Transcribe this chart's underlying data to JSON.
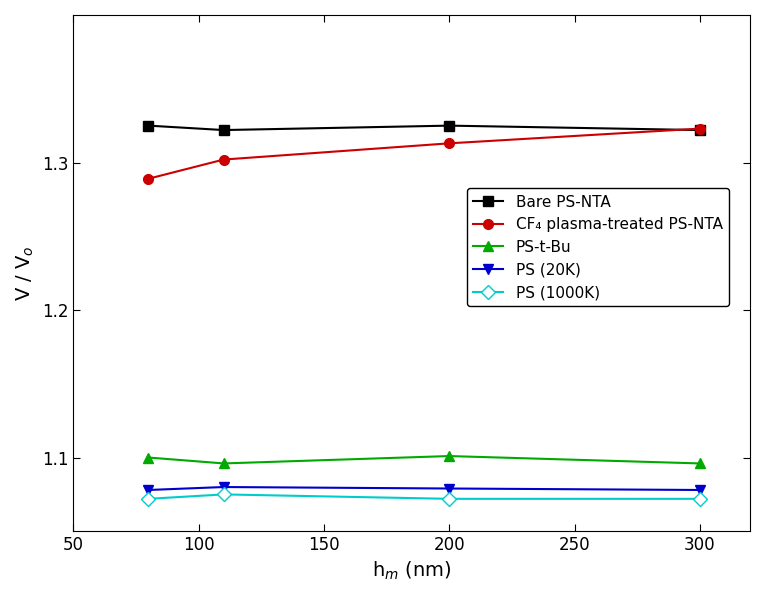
{
  "x": [
    80,
    110,
    200,
    300
  ],
  "bare_ps_nta": [
    1.325,
    1.322,
    1.325,
    1.322
  ],
  "cf4_ps_nta": [
    1.289,
    1.302,
    1.313,
    1.323
  ],
  "ps_tbu": [
    1.1,
    1.096,
    1.101,
    1.096
  ],
  "ps_20k": [
    1.078,
    1.08,
    1.079,
    1.078
  ],
  "ps_1000k": [
    1.072,
    1.075,
    1.072,
    1.072
  ],
  "colors": {
    "bare_ps_nta": "#000000",
    "cf4_ps_nta": "#cc0000",
    "ps_tbu": "#00aa00",
    "ps_20k": "#0000cc",
    "ps_1000k": "#00cccc"
  },
  "xlabel": "h$_m$ (nm)",
  "ylabel": "V / V$_o$",
  "xlim": [
    50,
    320
  ],
  "ylim": [
    1.05,
    1.4
  ],
  "xticks": [
    50,
    100,
    150,
    200,
    250,
    300
  ],
  "yticks": [
    1.1,
    1.2,
    1.3
  ],
  "legend_labels": [
    "Bare PS-NTA",
    "CF₄ plasma-treated PS-NTA",
    "PS-t-Bu",
    "PS (20K)",
    "PS (1000K)"
  ],
  "title_fontsize": 13,
  "label_fontsize": 14,
  "tick_fontsize": 12,
  "legend_fontsize": 11
}
